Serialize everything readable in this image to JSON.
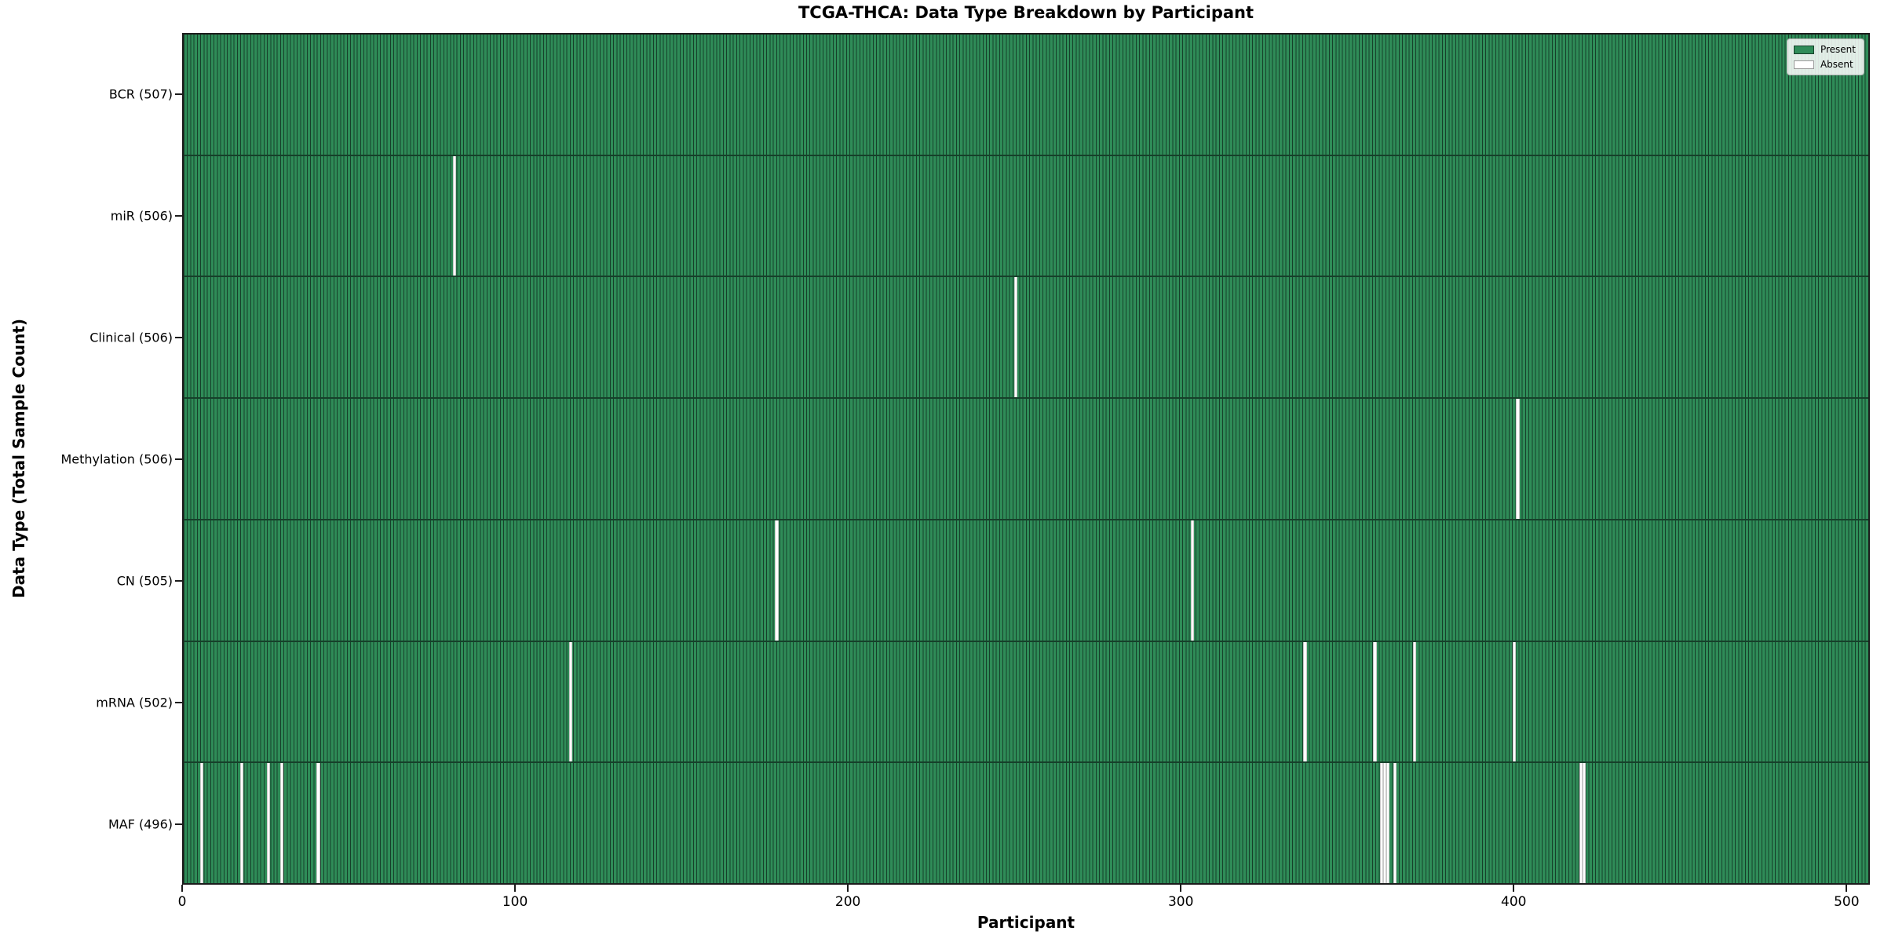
{
  "chart_data": {
    "type": "heatmap",
    "title": "TCGA-THCA: Data Type Breakdown by Participant",
    "xlabel": "Participant",
    "ylabel": "Data Type (Total Sample Count)",
    "x_ticks": [
      0,
      100,
      200,
      300,
      400,
      500
    ],
    "x_max": 507,
    "grid": false,
    "legend_position": "upper right",
    "legend": [
      {
        "label": "Present",
        "color": "#2F8C58"
      },
      {
        "label": "Absent",
        "color": "#FFFFFF"
      }
    ],
    "rows": [
      {
        "label": "BCR (507)",
        "data_type": "BCR",
        "total": 507,
        "absent_participants": []
      },
      {
        "label": "miR (506)",
        "data_type": "miR",
        "total": 506,
        "absent_participants": [
          81
        ]
      },
      {
        "label": "Clinical (506)",
        "data_type": "Clinical",
        "total": 506,
        "absent_participants": [
          250
        ]
      },
      {
        "label": "Methylation (506)",
        "data_type": "Methylation",
        "total": 506,
        "absent_participants": [
          401
        ]
      },
      {
        "label": "CN (505)",
        "data_type": "CN",
        "total": 505,
        "absent_participants": [
          178,
          303
        ]
      },
      {
        "label": "mRNA (502)",
        "data_type": "mRNA",
        "total": 502,
        "absent_participants": [
          116,
          337,
          358,
          370,
          400
        ]
      },
      {
        "label": "MAF (496)",
        "data_type": "MAF",
        "total": 496,
        "absent_participants": [
          5,
          17,
          25,
          29,
          40,
          360,
          361,
          362,
          364,
          420,
          421
        ]
      }
    ],
    "colors": {
      "present": "#2F8C58",
      "bar_edge": "#16402A",
      "absent": "#FFFFFF"
    }
  }
}
